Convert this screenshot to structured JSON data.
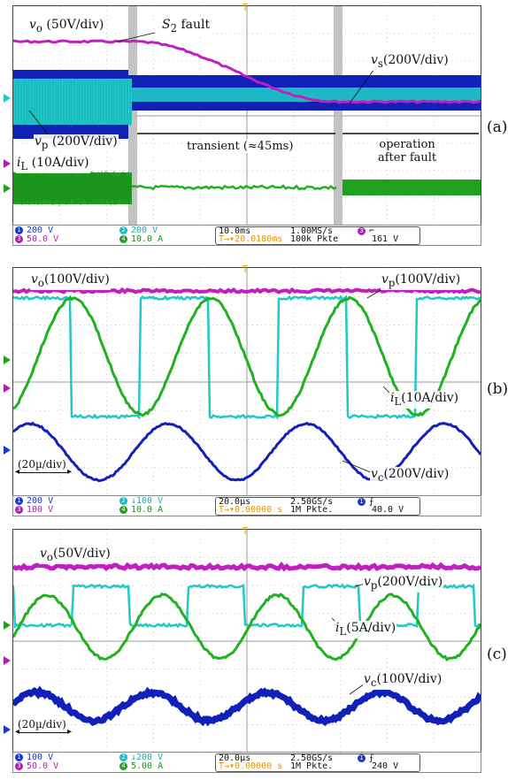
{
  "chart_data": [
    {
      "type": "line",
      "panel_label": "(a)",
      "annotations": {
        "vo": "(50V/div)",
        "fault": "fault",
        "vs": "(200V/div)",
        "vp": "(200V/div)",
        "iL": "(10A/div)",
        "transient": "transient (≈45ms)",
        "after_fault_1": "operation",
        "after_fault_2": "after fault"
      },
      "status": {
        "ch1": "200 V",
        "ch3": "50.0 V",
        "ch2": "200 V",
        "ch4": "10.0 A",
        "timebase": "10.0ms",
        "trig_pos": "20.0180ms",
        "rate": "1.00MS/s",
        "points": "100k Pkte",
        "trig_level": "161 V"
      },
      "series": [
        {
          "name": "vo",
          "color": "#c020c0"
        },
        {
          "name": "vs",
          "color": "#1020c0"
        },
        {
          "name": "vp",
          "color": "#20c8c8"
        },
        {
          "name": "iL",
          "color": "#20b020"
        }
      ]
    },
    {
      "type": "line",
      "panel_label": "(b)",
      "annotations": {
        "vo": "(100V/div)",
        "vp": "(100V/div)",
        "iL": "(10A/div)",
        "vc": "(200V/div)",
        "scale": "(20µ/div)"
      },
      "status": {
        "ch1": "200 V",
        "ch3": "100 V",
        "ch2": "↓100 V",
        "ch4": "10.0 A",
        "timebase": "20.0µs",
        "trig_pos": "0.00000 s",
        "rate": "2.50GS/s",
        "points": "1M Pkte.",
        "trig_level": "40.0 V"
      }
    },
    {
      "type": "line",
      "panel_label": "(c)",
      "annotations": {
        "vo": "(50V/div)",
        "vp": "(200V/div)",
        "iL": "(5A/div)",
        "vc": "(100V/div)",
        "scale": "(20µ/div)"
      },
      "status": {
        "ch1": "100 V",
        "ch3": "50.0 V",
        "ch2": "↓200 V",
        "ch4": "5.00 A",
        "timebase": "20.0µs",
        "trig_pos": "0.00000 s",
        "rate": "2.50GS/s",
        "points": "1M Pkte.",
        "trig_level": "240 V"
      }
    }
  ]
}
